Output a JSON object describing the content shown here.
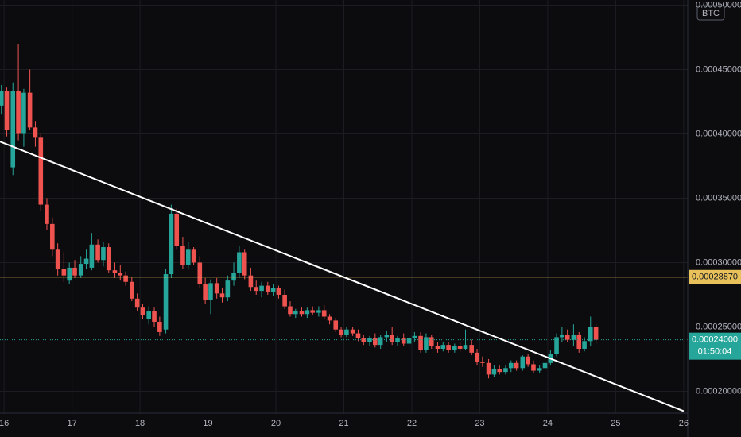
{
  "chart_data": {
    "type": "candlestick",
    "currency": "BTC",
    "x": [
      15.96,
      16.04,
      16.13,
      16.21,
      16.29,
      16.38,
      16.46,
      16.54,
      16.63,
      16.71,
      16.79,
      16.88,
      16.96,
      17.04,
      17.13,
      17.21,
      17.29,
      17.38,
      17.46,
      17.54,
      17.63,
      17.71,
      17.79,
      17.88,
      17.96,
      18.04,
      18.13,
      18.21,
      18.29,
      18.38,
      18.46,
      18.54,
      18.63,
      18.71,
      18.79,
      18.88,
      18.96,
      19.04,
      19.13,
      19.21,
      19.29,
      19.38,
      19.46,
      19.54,
      19.63,
      19.71,
      19.79,
      19.88,
      19.96,
      20.04,
      20.13,
      20.21,
      20.29,
      20.38,
      20.46,
      20.54,
      20.63,
      20.71,
      20.79,
      20.88,
      20.96,
      21.04,
      21.13,
      21.21,
      21.29,
      21.38,
      21.46,
      21.54,
      21.63,
      21.71,
      21.79,
      21.88,
      21.96,
      22.04,
      22.13,
      22.21,
      22.29,
      22.38,
      22.46,
      22.54,
      22.63,
      22.71,
      22.79,
      22.88,
      22.96,
      23.04,
      23.13,
      23.21,
      23.29,
      23.38,
      23.46,
      23.54,
      23.63,
      23.71,
      23.79,
      23.88,
      23.96,
      24.04,
      24.13,
      24.21,
      24.29,
      24.38,
      24.46,
      24.54,
      24.63,
      24.71
    ],
    "open": [
      0.000422,
      0.000433,
      0.000374,
      0.000433,
      0.0004,
      0.000432,
      0.000405,
      0.000397,
      0.000345,
      0.00033,
      0.00031,
      0.000295,
      0.000286,
      0.000296,
      0.00029,
      0.000299,
      0.000296,
      0.000314,
      0.000302,
      0.000312,
      0.000294,
      0.000292,
      0.00029,
      0.000285,
      0.000272,
      0.000265,
      0.000256,
      0.000262,
      0.000254,
      0.000248,
      0.000291,
      0.000338,
      0.000313,
      0.000298,
      0.00031,
      0.0003,
      0.000283,
      0.000271,
      0.000284,
      0.000276,
      0.000273,
      0.000286,
      0.000292,
      0.000308,
      0.00029,
      0.000281,
      0.000278,
      0.000282,
      0.000277,
      0.00028,
      0.000275,
      0.000266,
      0.00026,
      0.000262,
      0.00026,
      0.000263,
      0.000261,
      0.000263,
      0.000258,
      0.000255,
      0.000248,
      0.000244,
      0.000248,
      0.000245,
      0.000241,
      0.000238,
      0.000241,
      0.000236,
      0.000242,
      0.000244,
      0.000238,
      0.000241,
      0.000237,
      0.000241,
      0.000243,
      0.000232,
      0.000242,
      0.000235,
      0.000233,
      0.000236,
      0.000232,
      0.000235,
      0.000233,
      0.000236,
      0.00023,
      0.000223,
      0.000222,
      0.000213,
      0.000217,
      0.000215,
      0.000218,
      0.000222,
      0.000218,
      0.000227,
      0.000221,
      0.000216,
      0.000218,
      0.000222,
      0.000229,
      0.000242,
      0.000244,
      0.00024,
      0.000244,
      0.000233,
      0.000239,
      0.00025
    ],
    "high": [
      0.000438,
      0.000436,
      0.00044,
      0.00047,
      0.000435,
      0.00045,
      0.00041,
      0.0004,
      0.00035,
      0.000335,
      0.000315,
      0.000308,
      0.0003,
      0.000302,
      0.000305,
      0.00031,
      0.000323,
      0.000318,
      0.000316,
      0.000315,
      0.0003,
      0.000298,
      0.000293,
      0.000289,
      0.000276,
      0.000268,
      0.000266,
      0.000265,
      0.000258,
      0.000295,
      0.000345,
      0.000342,
      0.00032,
      0.000316,
      0.000312,
      0.000305,
      0.000288,
      0.000287,
      0.000288,
      0.00028,
      0.00029,
      0.0003,
      0.000313,
      0.00031,
      0.000296,
      0.000286,
      0.000285,
      0.000285,
      0.000283,
      0.000282,
      0.000279,
      0.00027,
      0.000264,
      0.000265,
      0.000265,
      0.000266,
      0.000266,
      0.000267,
      0.00026,
      0.000257,
      0.00025,
      0.00025,
      0.00025,
      0.000248,
      0.000244,
      0.000243,
      0.000245,
      0.000244,
      0.000247,
      0.00025,
      0.000243,
      0.000245,
      0.000243,
      0.000246,
      0.000246,
      0.000245,
      0.000244,
      0.000238,
      0.000238,
      0.000238,
      0.000237,
      0.000238,
      0.000248,
      0.00024,
      0.000233,
      0.000227,
      0.000225,
      0.00022,
      0.00022,
      0.00022,
      0.000224,
      0.000224,
      0.000228,
      0.000229,
      0.000224,
      0.00022,
      0.000224,
      0.000232,
      0.000245,
      0.00025,
      0.000248,
      0.000252,
      0.000246,
      0.000242,
      0.000258,
      0.000252
    ],
    "low": [
      0.000415,
      0.000398,
      0.000368,
      0.000395,
      0.00039,
      0.000403,
      0.00039,
      0.00034,
      0.000325,
      0.000305,
      0.00029,
      0.000285,
      0.000283,
      0.000288,
      0.000288,
      0.000295,
      0.000294,
      0.0003,
      0.000297,
      0.000292,
      0.000288,
      0.000286,
      0.000282,
      0.00027,
      0.000262,
      0.000256,
      0.000252,
      0.00025,
      0.000243,
      0.000245,
      0.000288,
      0.00031,
      0.000295,
      0.000295,
      0.000298,
      0.00028,
      0.000268,
      0.00026,
      0.000272,
      0.000269,
      0.00027,
      0.000282,
      0.000288,
      0.000287,
      0.000278,
      0.000275,
      0.000273,
      0.000275,
      0.000274,
      0.000272,
      0.000264,
      0.000258,
      0.000257,
      0.000258,
      0.000257,
      0.000259,
      0.000258,
      0.000256,
      0.000252,
      0.000246,
      0.000242,
      0.000242,
      0.000243,
      0.000239,
      0.000236,
      0.000235,
      0.000234,
      0.000233,
      0.000238,
      0.000236,
      0.000235,
      0.000235,
      0.000234,
      0.000238,
      0.00023,
      0.00023,
      0.000233,
      0.00023,
      0.000231,
      0.00023,
      0.00023,
      0.000231,
      0.000232,
      0.000228,
      0.00022,
      0.000219,
      0.00021,
      0.000211,
      0.000213,
      0.000213,
      0.000215,
      0.000216,
      0.000216,
      0.000219,
      0.000214,
      0.000214,
      0.000216,
      0.00022,
      0.000227,
      0.000238,
      0.000238,
      0.000235,
      0.00023,
      0.000231,
      0.000235,
      0.000237
    ],
    "close": [
      0.000433,
      0.000403,
      0.000433,
      0.0004,
      0.000432,
      0.000405,
      0.000397,
      0.000345,
      0.00033,
      0.00031,
      0.000295,
      0.00029,
      0.000296,
      0.00029,
      0.000299,
      0.000303,
      0.000314,
      0.000302,
      0.000312,
      0.000294,
      0.000292,
      0.00029,
      0.000285,
      0.000272,
      0.000265,
      0.000259,
      0.000262,
      0.000254,
      0.000246,
      0.000291,
      0.000338,
      0.000313,
      0.000298,
      0.00031,
      0.0003,
      0.000283,
      0.000271,
      0.000284,
      0.000276,
      0.000273,
      0.000286,
      0.000292,
      0.000308,
      0.00029,
      0.000281,
      0.000278,
      0.000282,
      0.000277,
      0.00028,
      0.000275,
      0.000266,
      0.00026,
      0.000262,
      0.00026,
      0.000263,
      0.000261,
      0.000263,
      0.000258,
      0.000255,
      0.000248,
      0.000244,
      0.000248,
      0.000245,
      0.000241,
      0.000238,
      0.000241,
      0.000236,
      0.000242,
      0.000244,
      0.000238,
      0.000241,
      0.000237,
      0.000241,
      0.000243,
      0.000232,
      0.000242,
      0.000235,
      0.000233,
      0.000236,
      0.000232,
      0.000235,
      0.000233,
      0.000236,
      0.00023,
      0.000223,
      0.000222,
      0.000213,
      0.000217,
      0.000215,
      0.000218,
      0.000222,
      0.000218,
      0.000227,
      0.000221,
      0.000216,
      0.000218,
      0.000222,
      0.000229,
      0.000242,
      0.000244,
      0.00024,
      0.000244,
      0.000233,
      0.000239,
      0.00025,
      0.00024
    ],
    "up_color": "#26a69a",
    "down_color": "#ef5350",
    "xlim": [
      15.94,
      26.06
    ],
    "ylim": [
      0.000183,
      0.000504
    ],
    "xticks": [
      16,
      17,
      18,
      19,
      20,
      21,
      22,
      23,
      24,
      25,
      26
    ],
    "yticks": [
      {
        "value": 0.0002,
        "label": "0.00020000"
      },
      {
        "value": 0.00025,
        "label": "0.00025000"
      },
      {
        "value": 0.0003,
        "label": "0.00030000"
      },
      {
        "value": 0.00035,
        "label": "0.00035000"
      },
      {
        "value": 0.0004,
        "label": "0.00040000"
      },
      {
        "value": 0.00045,
        "label": "0.00045000"
      },
      {
        "value": 0.0005,
        "label": "0.00050000"
      }
    ],
    "grid": true,
    "horizontal_line": {
      "value": 0.0002887,
      "label": "0.00028870",
      "color": "#e8c15a"
    },
    "last_price": {
      "value": 0.00024,
      "label": "0.00024000",
      "countdown": "01:50:04",
      "color": "#26a69a"
    },
    "trend_line": {
      "x": [
        15.94,
        26
      ],
      "y": [
        0.000394,
        0.0001846
      ],
      "color": "#ffffff"
    }
  }
}
